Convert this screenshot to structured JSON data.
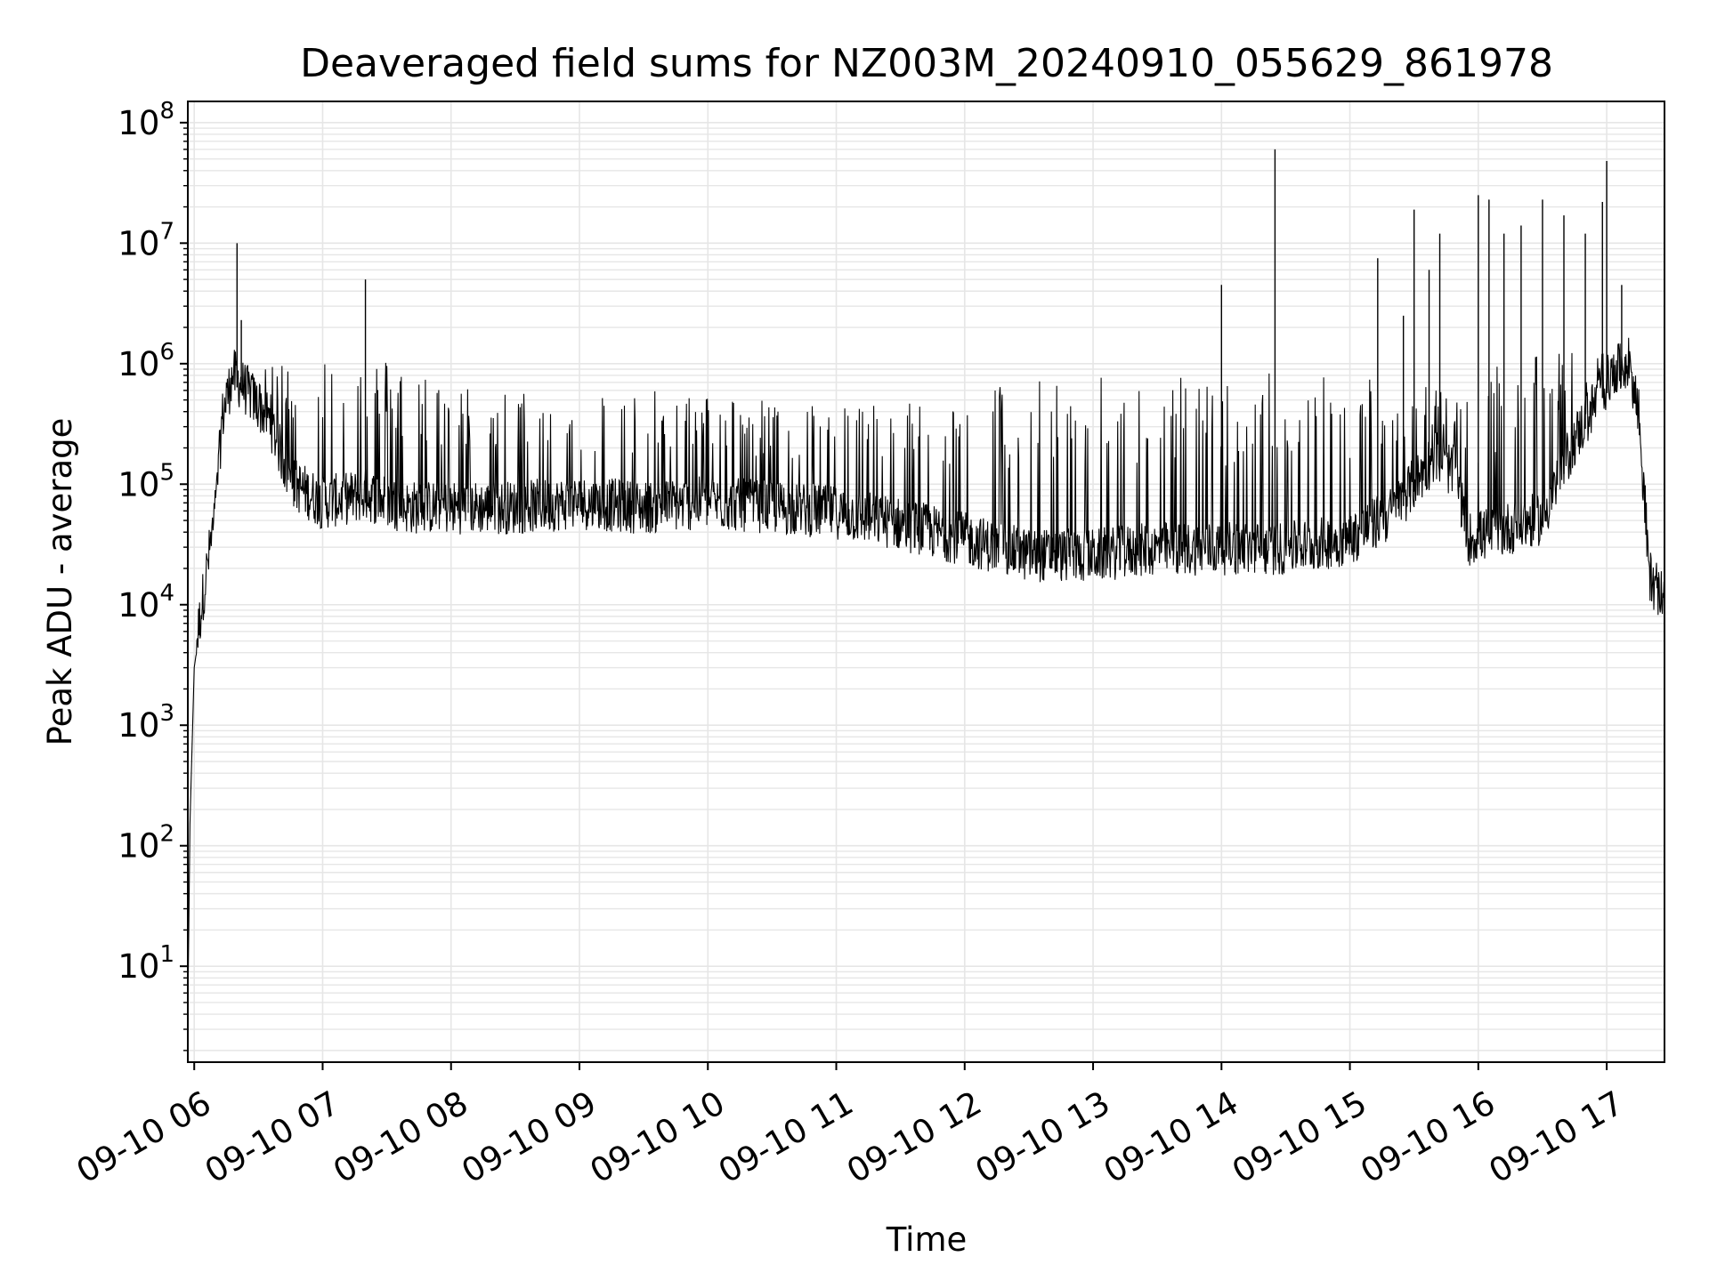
{
  "chart_data": {
    "type": "line",
    "title": "Deaveraged field sums for NZ003M_20240910_055629_861978",
    "xlabel": "Time",
    "ylabel": "Peak ADU - average",
    "yscale": "log",
    "ylim": [
      1.6,
      150000000
    ],
    "xlim": [
      "09-10 05:57",
      "09-10 17:27"
    ],
    "grid": true,
    "line_color": "#000000",
    "grid_color": "#e6e6e6",
    "x_ticks": [
      {
        "label": "09-10 06",
        "value": "09-10 06:00"
      },
      {
        "label": "09-10 07",
        "value": "09-10 07:00"
      },
      {
        "label": "09-10 08",
        "value": "09-10 08:00"
      },
      {
        "label": "09-10 09",
        "value": "09-10 09:00"
      },
      {
        "label": "09-10 10",
        "value": "09-10 10:00"
      },
      {
        "label": "09-10 11",
        "value": "09-10 11:00"
      },
      {
        "label": "09-10 12",
        "value": "09-10 12:00"
      },
      {
        "label": "09-10 13",
        "value": "09-10 13:00"
      },
      {
        "label": "09-10 14",
        "value": "09-10 14:00"
      },
      {
        "label": "09-10 15",
        "value": "09-10 15:00"
      },
      {
        "label": "09-10 16",
        "value": "09-10 16:00"
      },
      {
        "label": "09-10 17",
        "value": "09-10 17:00"
      }
    ],
    "y_ticks": [
      {
        "base": "10",
        "exp": "1",
        "value": 10
      },
      {
        "base": "10",
        "exp": "2",
        "value": 100
      },
      {
        "base": "10",
        "exp": "3",
        "value": 1000
      },
      {
        "base": "10",
        "exp": "4",
        "value": 10000
      },
      {
        "base": "10",
        "exp": "5",
        "value": 100000
      },
      {
        "base": "10",
        "exp": "6",
        "value": 1000000
      },
      {
        "base": "10",
        "exp": "7",
        "value": 10000000
      },
      {
        "base": "10",
        "exp": "8",
        "value": 100000000
      }
    ],
    "series": [
      {
        "envelope": [
          {
            "x": "09-10 05:57",
            "base": 4,
            "high": 4
          },
          {
            "x": "09-10 05:58",
            "base": 150,
            "high": 150
          },
          {
            "x": "09-10 06:00",
            "base": 3000,
            "high": 5000
          },
          {
            "x": "09-10 06:05",
            "base": 13000,
            "high": 16000
          },
          {
            "x": "09-10 06:10",
            "base": 50000,
            "high": 100000
          },
          {
            "x": "09-10 06:13",
            "base": 300000,
            "high": 700000
          },
          {
            "x": "09-10 06:18",
            "base": 700000,
            "high": 1000000
          },
          {
            "x": "09-10 06:25",
            "base": 500000,
            "high": 900000
          },
          {
            "x": "09-10 06:35",
            "base": 300000,
            "high": 900000
          },
          {
            "x": "09-10 06:45",
            "base": 90000,
            "high": 1300000
          },
          {
            "x": "09-10 07:00",
            "base": 60000,
            "high": 1400000
          },
          {
            "x": "09-10 07:20",
            "base": 70000,
            "high": 1300000
          },
          {
            "x": "09-10 07:40",
            "base": 55000,
            "high": 1000000
          },
          {
            "x": "09-10 08:00",
            "base": 55000,
            "high": 700000
          },
          {
            "x": "09-10 08:30",
            "base": 55000,
            "high": 600000
          },
          {
            "x": "09-10 09:00",
            "base": 60000,
            "high": 600000
          },
          {
            "x": "09-10 09:30",
            "base": 55000,
            "high": 600000
          },
          {
            "x": "09-10 10:00",
            "base": 60000,
            "high": 600000
          },
          {
            "x": "09-10 10:30",
            "base": 55000,
            "high": 500000
          },
          {
            "x": "09-10 11:00",
            "base": 50000,
            "high": 500000
          },
          {
            "x": "09-10 11:30",
            "base": 40000,
            "high": 500000
          },
          {
            "x": "09-10 12:00",
            "base": 30000,
            "high": 600000
          },
          {
            "x": "09-10 12:30",
            "base": 22000,
            "high": 800000
          },
          {
            "x": "09-10 13:00",
            "base": 22000,
            "high": 800000
          },
          {
            "x": "09-10 13:30",
            "base": 25000,
            "high": 800000
          },
          {
            "x": "09-10 14:00",
            "base": 25000,
            "high": 800000
          },
          {
            "x": "09-10 14:30",
            "base": 25000,
            "high": 900000
          },
          {
            "x": "09-10 15:00",
            "base": 30000,
            "high": 900000
          },
          {
            "x": "09-10 15:20",
            "base": 50000,
            "high": 800000
          },
          {
            "x": "09-10 15:40",
            "base": 150000,
            "high": 700000
          },
          {
            "x": "09-10 15:50",
            "base": 100000,
            "high": 500000
          },
          {
            "x": "09-10 15:55",
            "base": 30000,
            "high": 500000
          },
          {
            "x": "09-10 16:10",
            "base": 35000,
            "high": 1000000
          },
          {
            "x": "09-10 16:30",
            "base": 45000,
            "high": 1200000
          },
          {
            "x": "09-10 16:45",
            "base": 200000,
            "high": 1300000
          },
          {
            "x": "09-10 17:00",
            "base": 600000,
            "high": 1400000
          },
          {
            "x": "09-10 17:10",
            "base": 900000,
            "high": 1300000
          },
          {
            "x": "09-10 17:15",
            "base": 300000,
            "high": 800000
          },
          {
            "x": "09-10 17:20",
            "base": 15000,
            "high": 25000
          },
          {
            "x": "09-10 17:27",
            "base": 9000,
            "high": 12000
          }
        ],
        "spikes": [
          {
            "x": "09-10 06:20",
            "y": 10000000
          },
          {
            "x": "09-10 06:22",
            "y": 2300000
          },
          {
            "x": "09-10 07:20",
            "y": 5000000
          },
          {
            "x": "09-10 14:00",
            "y": 4500000
          },
          {
            "x": "09-10 14:25",
            "y": 60000000
          },
          {
            "x": "09-10 15:13",
            "y": 7500000
          },
          {
            "x": "09-10 15:25",
            "y": 2500000
          },
          {
            "x": "09-10 15:30",
            "y": 19000000
          },
          {
            "x": "09-10 15:37",
            "y": 6000000
          },
          {
            "x": "09-10 15:42",
            "y": 12000000
          },
          {
            "x": "09-10 16:00",
            "y": 25000000
          },
          {
            "x": "09-10 16:05",
            "y": 23000000
          },
          {
            "x": "09-10 16:12",
            "y": 12000000
          },
          {
            "x": "09-10 16:20",
            "y": 14000000
          },
          {
            "x": "09-10 16:30",
            "y": 23000000
          },
          {
            "x": "09-10 16:40",
            "y": 17000000
          },
          {
            "x": "09-10 16:50",
            "y": 12000000
          },
          {
            "x": "09-10 16:58",
            "y": 22000000
          },
          {
            "x": "09-10 17:00",
            "y": 48000000
          },
          {
            "x": "09-10 17:07",
            "y": 4500000
          }
        ]
      }
    ]
  }
}
